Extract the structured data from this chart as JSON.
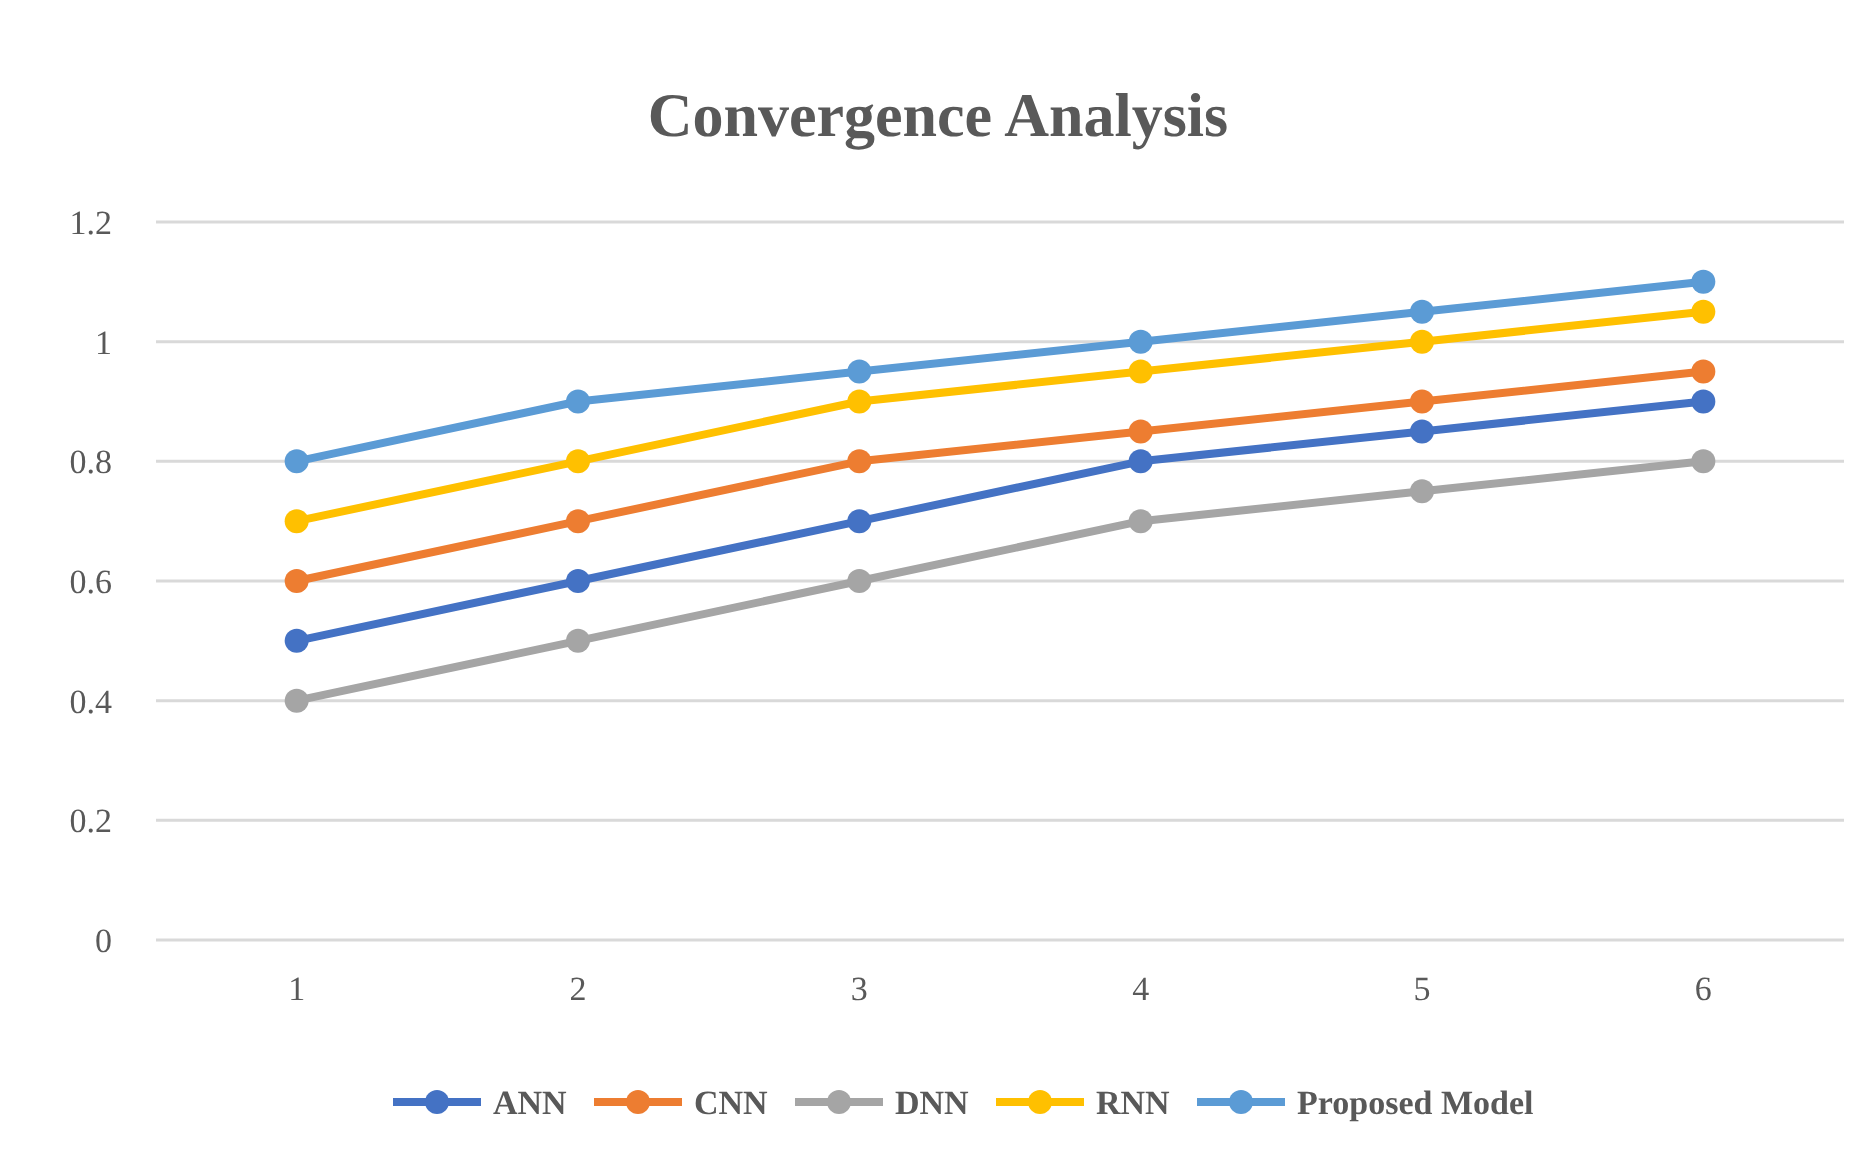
{
  "chart_data": {
    "type": "line",
    "title": "Convergence Analysis",
    "categories": [
      "1",
      "2",
      "3",
      "4",
      "5",
      "6"
    ],
    "series": [
      {
        "name": "ANN",
        "color": "#4472c4",
        "values": [
          0.5,
          0.6,
          0.7,
          0.8,
          0.85,
          0.9
        ]
      },
      {
        "name": "CNN",
        "color": "#ed7d31",
        "values": [
          0.6,
          0.7,
          0.8,
          0.85,
          0.9,
          0.95
        ]
      },
      {
        "name": "DNN",
        "color": "#a5a5a5",
        "values": [
          0.4,
          0.5,
          0.6,
          0.7,
          0.75,
          0.8
        ]
      },
      {
        "name": "RNN",
        "color": "#ffc000",
        "values": [
          0.7,
          0.8,
          0.9,
          0.95,
          1.0,
          1.05
        ]
      },
      {
        "name": "Proposed Model",
        "color": "#5b9bd5",
        "values": [
          0.8,
          0.9,
          0.95,
          1.0,
          1.05,
          1.1
        ]
      }
    ],
    "ylim": [
      0,
      1.2
    ],
    "yticks": [
      0,
      0.2,
      0.4,
      0.6,
      0.8,
      1,
      1.2
    ],
    "grid": "y",
    "legend": "bottom",
    "marker": "circle",
    "line_style": "solid"
  }
}
